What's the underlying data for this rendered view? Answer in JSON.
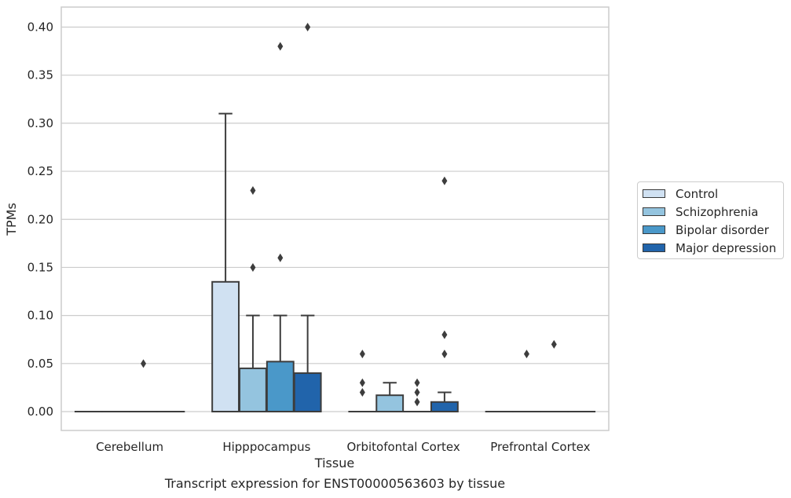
{
  "chart_data": {
    "type": "boxplot",
    "caption": "Transcript expression for ENST00000563603 by tissue",
    "xlabel": "Tissue",
    "ylabel": "TPMs",
    "ylim": [
      -0.019,
      0.42
    ],
    "yticks": [
      "0.00",
      "0.05",
      "0.10",
      "0.15",
      "0.20",
      "0.25",
      "0.30",
      "0.35",
      "0.40"
    ],
    "categories": [
      "Cerebellum",
      "Hipppocampus",
      "Orbitofontal Cortex",
      "Prefrontal Cortex"
    ],
    "grid": "horizontal",
    "legend_position": "right",
    "series": [
      {
        "name": "Control",
        "color": "#d0e1f2",
        "boxes": [
          {
            "q1": 0,
            "median": 0,
            "q3": 0,
            "whisker_low": 0,
            "whisker_high": 0,
            "outliers": []
          },
          {
            "q1": 0,
            "median": 0,
            "q3": 0.135,
            "whisker_low": 0,
            "whisker_high": 0.31,
            "outliers": []
          },
          {
            "q1": 0,
            "median": 0,
            "q3": 0,
            "whisker_low": 0,
            "whisker_high": 0,
            "outliers": [
              0.02,
              0.03,
              0.06
            ]
          },
          {
            "q1": 0,
            "median": 0,
            "q3": 0,
            "whisker_low": 0,
            "whisker_high": 0,
            "outliers": []
          }
        ]
      },
      {
        "name": "Schizophrenia",
        "color": "#94c4df",
        "boxes": [
          {
            "q1": 0,
            "median": 0,
            "q3": 0,
            "whisker_low": 0,
            "whisker_high": 0,
            "outliers": []
          },
          {
            "q1": 0,
            "median": 0,
            "q3": 0.045,
            "whisker_low": 0,
            "whisker_high": 0.1,
            "outliers": [
              0.15,
              0.23
            ]
          },
          {
            "q1": 0,
            "median": 0,
            "q3": 0.017,
            "whisker_low": 0,
            "whisker_high": 0.03,
            "outliers": []
          },
          {
            "q1": 0,
            "median": 0,
            "q3": 0,
            "whisker_low": 0,
            "whisker_high": 0,
            "outliers": [
              0.06
            ]
          }
        ]
      },
      {
        "name": "Bipolar disorder",
        "color": "#4a98c9",
        "boxes": [
          {
            "q1": 0,
            "median": 0,
            "q3": 0,
            "whisker_low": 0,
            "whisker_high": 0,
            "outliers": [
              0.05
            ]
          },
          {
            "q1": 0,
            "median": 0,
            "q3": 0.052,
            "whisker_low": 0,
            "whisker_high": 0.1,
            "outliers": [
              0.16,
              0.38
            ]
          },
          {
            "q1": 0,
            "median": 0,
            "q3": 0,
            "whisker_low": 0,
            "whisker_high": 0,
            "outliers": [
              0.01,
              0.02,
              0.03
            ]
          },
          {
            "q1": 0,
            "median": 0,
            "q3": 0,
            "whisker_low": 0,
            "whisker_high": 0,
            "outliers": [
              0.07
            ]
          }
        ]
      },
      {
        "name": "Major depression",
        "color": "#2164ab",
        "boxes": [
          {
            "q1": 0,
            "median": 0,
            "q3": 0,
            "whisker_low": 0,
            "whisker_high": 0,
            "outliers": []
          },
          {
            "q1": 0,
            "median": 0,
            "q3": 0.04,
            "whisker_low": 0,
            "whisker_high": 0.1,
            "outliers": [
              0.4
            ]
          },
          {
            "q1": 0,
            "median": 0,
            "q3": 0.01,
            "whisker_low": 0,
            "whisker_high": 0.02,
            "outliers": [
              0.06,
              0.08,
              0.24
            ]
          },
          {
            "q1": 0,
            "median": 0,
            "q3": 0,
            "whisker_low": 0,
            "whisker_high": 0,
            "outliers": []
          }
        ]
      }
    ]
  }
}
